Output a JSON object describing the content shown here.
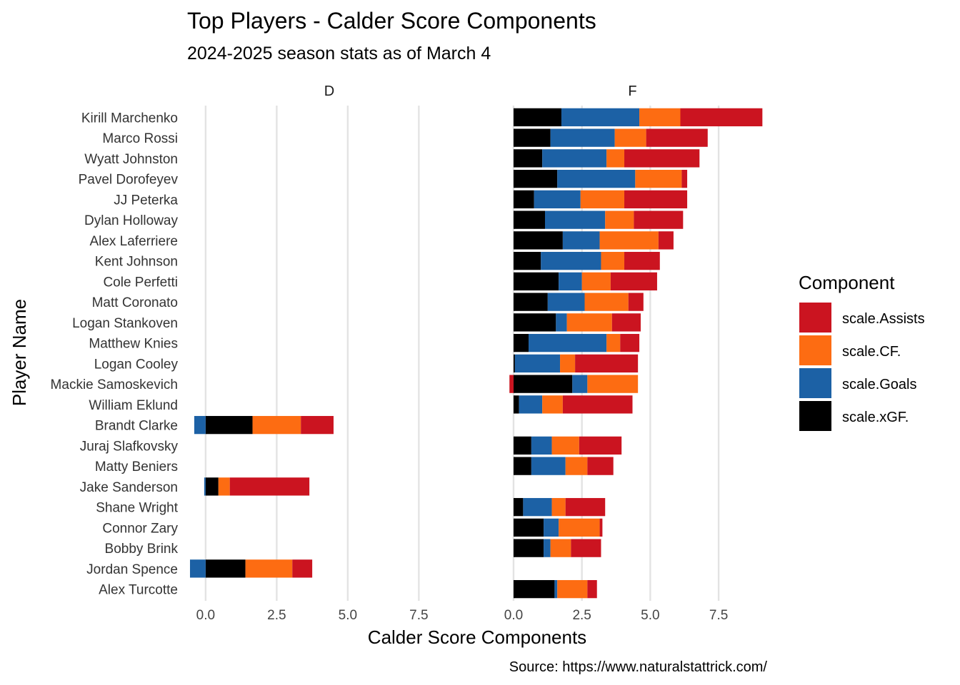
{
  "chart_data": {
    "type": "bar",
    "orientation": "horizontal",
    "stacked": true,
    "title": "Top Players - Calder Score Components",
    "subtitle": "2024-2025 season stats as of March 4",
    "xlabel": "Calder Score Components",
    "ylabel": "Player Name",
    "caption": "Source: https://www.naturalstattrick.com/",
    "xlim": [
      -0.6,
      9.3
    ],
    "x_ticks": [
      0.0,
      2.5,
      5.0,
      7.5
    ],
    "x_tick_labels": [
      "0.0",
      "2.5",
      "5.0",
      "7.5"
    ],
    "grid": true,
    "legend": {
      "title": "Component",
      "position": "right",
      "items": [
        {
          "name": "scale.Assists",
          "color": "#cb1420"
        },
        {
          "name": "scale.CF.",
          "color": "#fd6c12"
        },
        {
          "name": "scale.Goals",
          "color": "#1c61a5"
        },
        {
          "name": "scale.xGF.",
          "color": "#000000"
        }
      ]
    },
    "stack_order": [
      "scale.xGF.",
      "scale.Goals",
      "scale.CF.",
      "scale.Assists"
    ],
    "facets": [
      "D",
      "F"
    ],
    "categories": [
      "Kirill Marchenko",
      "Marco Rossi",
      "Wyatt Johnston",
      "Pavel Dorofeyev",
      "JJ Peterka",
      "Dylan Holloway",
      "Alex Laferriere",
      "Kent Johnson",
      "Cole Perfetti",
      "Matt Coronato",
      "Logan Stankoven",
      "Matthew Knies",
      "Logan Cooley",
      "Mackie Samoskevich",
      "William Eklund",
      "Brandt Clarke",
      "Juraj Slafkovsky",
      "Matty Beniers",
      "Jake Sanderson",
      "Shane Wright",
      "Connor Zary",
      "Bobby Brink",
      "Jordan Spence",
      "Alex Turcotte"
    ],
    "players": [
      {
        "name": "Kirill Marchenko",
        "facet": "F",
        "xGF": 1.75,
        "Goals": 2.85,
        "CF": 1.5,
        "Assists": 3.0
      },
      {
        "name": "Marco Rossi",
        "facet": "F",
        "xGF": 1.35,
        "Goals": 2.35,
        "CF": 1.15,
        "Assists": 2.25
      },
      {
        "name": "Wyatt Johnston",
        "facet": "F",
        "xGF": 1.05,
        "Goals": 2.35,
        "CF": 0.65,
        "Assists": 2.75
      },
      {
        "name": "Pavel Dorofeyev",
        "facet": "F",
        "xGF": 1.6,
        "Goals": 2.85,
        "CF": 1.7,
        "Assists": 0.2
      },
      {
        "name": "JJ Peterka",
        "facet": "F",
        "xGF": 0.75,
        "Goals": 1.7,
        "CF": 1.6,
        "Assists": 2.3
      },
      {
        "name": "Dylan Holloway",
        "facet": "F",
        "xGF": 1.15,
        "Goals": 2.2,
        "CF": 1.05,
        "Assists": 1.8
      },
      {
        "name": "Alex Laferriere",
        "facet": "F",
        "xGF": 1.8,
        "Goals": 1.35,
        "CF": 2.15,
        "Assists": 0.55
      },
      {
        "name": "Kent Johnson",
        "facet": "F",
        "xGF": 1.0,
        "Goals": 2.2,
        "CF": 0.85,
        "Assists": 1.3
      },
      {
        "name": "Cole Perfetti",
        "facet": "F",
        "xGF": 1.65,
        "Goals": 0.85,
        "CF": 1.05,
        "Assists": 1.7
      },
      {
        "name": "Matt Coronato",
        "facet": "F",
        "xGF": 1.25,
        "Goals": 1.35,
        "CF": 1.6,
        "Assists": 0.55
      },
      {
        "name": "Logan Stankoven",
        "facet": "F",
        "xGF": 1.55,
        "Goals": 0.4,
        "CF": 1.65,
        "Assists": 1.05
      },
      {
        "name": "Matthew Knies",
        "facet": "F",
        "xGF": 0.55,
        "Goals": 2.85,
        "CF": 0.5,
        "Assists": 0.7
      },
      {
        "name": "Logan Cooley",
        "facet": "F",
        "xGF": 0.05,
        "Goals": 1.65,
        "CF": 0.55,
        "Assists": 2.3
      },
      {
        "name": "Mackie Samoskevich",
        "facet": "F",
        "xGF": 2.15,
        "Goals": 0.55,
        "CF": 1.85,
        "Assists": -0.15
      },
      {
        "name": "William Eklund",
        "facet": "F",
        "xGF": 0.2,
        "Goals": 0.85,
        "CF": 0.75,
        "Assists": 2.55
      },
      {
        "name": "Brandt Clarke",
        "facet": "D",
        "xGF": 1.65,
        "Goals": -0.4,
        "CF": 1.7,
        "Assists": 1.15
      },
      {
        "name": "Juraj Slafkovsky",
        "facet": "F",
        "xGF": 0.65,
        "Goals": 0.75,
        "CF": 1.0,
        "Assists": 1.55
      },
      {
        "name": "Matty Beniers",
        "facet": "F",
        "xGF": 0.65,
        "Goals": 1.25,
        "CF": 0.8,
        "Assists": 0.95
      },
      {
        "name": "Jake Sanderson",
        "facet": "D",
        "xGF": 0.45,
        "Goals": -0.05,
        "CF": 0.4,
        "Assists": 2.8
      },
      {
        "name": "Shane Wright",
        "facet": "F",
        "xGF": 0.35,
        "Goals": 1.05,
        "CF": 0.5,
        "Assists": 1.45
      },
      {
        "name": "Connor Zary",
        "facet": "F",
        "xGF": 1.1,
        "Goals": 0.55,
        "CF": 1.5,
        "Assists": 0.1
      },
      {
        "name": "Bobby Brink",
        "facet": "F",
        "xGF": 1.1,
        "Goals": 0.25,
        "CF": 0.75,
        "Assists": 1.1
      },
      {
        "name": "Jordan Spence",
        "facet": "D",
        "xGF": 1.4,
        "Goals": -0.55,
        "CF": 1.65,
        "Assists": 0.7
      },
      {
        "name": "Alex Turcotte",
        "facet": "F",
        "xGF": 1.5,
        "Goals": 0.1,
        "CF": 1.1,
        "Assists": 0.35
      }
    ]
  }
}
